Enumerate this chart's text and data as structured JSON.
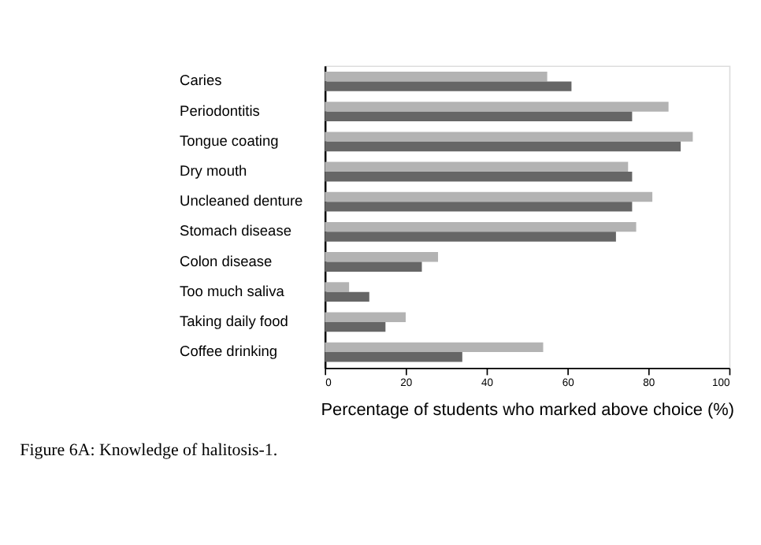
{
  "chart_data": {
    "type": "bar",
    "orientation": "horizontal",
    "title": "Figure 6A: Knowledge of halitosis-1.",
    "xlabel": "Percentage of students who marked above choice (%)",
    "categories": [
      "Caries",
      "Periodontitis",
      "Tongue coating",
      "Dry mouth",
      "Uncleaned denture",
      "Stomach disease",
      "Colon disease",
      "Too much saliva",
      "Taking daily food",
      "Coffee drinking"
    ],
    "series": [
      {
        "color": "#b3b3b3",
        "values": [
          55,
          85,
          91,
          75,
          81,
          77,
          28,
          6,
          20,
          54
        ]
      },
      {
        "color": "#666666",
        "values": [
          61,
          76,
          88,
          76,
          76,
          72,
          24,
          11,
          15,
          34
        ]
      }
    ],
    "xlim": [
      0,
      100
    ],
    "xticks": [
      0,
      20,
      40,
      60,
      80,
      100
    ],
    "grid": false
  }
}
